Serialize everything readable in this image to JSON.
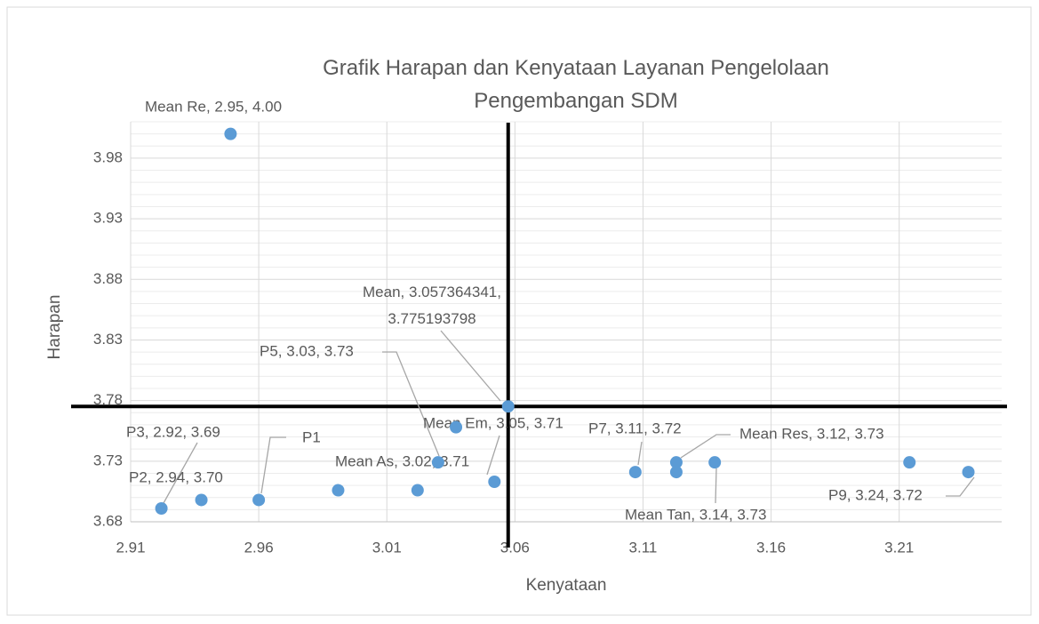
{
  "chart_data": {
    "type": "scatter",
    "title": "Grafik Harapan dan Kenyataan Layanan Pengelolaan Pengembangan SDM",
    "xlabel": "Kenyataan",
    "ylabel": "Harapan",
    "x": [
      2.949,
      2.922,
      2.9376,
      2.96,
      2.991,
      3.022,
      3.03,
      3.037,
      3.052,
      3.057364341,
      3.107,
      3.123,
      3.123,
      3.138,
      3.214,
      3.237
    ],
    "y": [
      4.0,
      3.691,
      3.698,
      3.698,
      3.706,
      3.706,
      3.729,
      3.758,
      3.713,
      3.775193798,
      3.721,
      3.729,
      3.721,
      3.729,
      3.729,
      3.721
    ],
    "labels": [
      "Mean Re, 2.95, 4.00",
      "P3, 2.92, 3.69",
      "P2, 2.94, 3.70",
      "P1",
      null,
      "Mean As, 3.02, 3.71",
      "P5, 3.03, 3.73",
      null,
      "Mean Em, 3.05, 3.71",
      "Mean, 3.057364341, 3.775193798",
      "P7, 3.11, 3.72",
      "Mean Res, 3.12, 3.73",
      null,
      "Mean Tan, 3.14, 3.73",
      null,
      "P9, 3.24, 3.72"
    ],
    "color": "#5b9bd5",
    "xlim": [
      2.91,
      3.25
    ],
    "ylim": [
      3.68,
      4.01
    ],
    "xticks": [
      2.91,
      2.96,
      3.01,
      3.06,
      3.11,
      3.16,
      3.21
    ],
    "yticks": [
      3.68,
      3.73,
      3.78,
      3.83,
      3.88,
      3.93,
      3.98
    ],
    "grid": true,
    "minor_grid": true
  }
}
